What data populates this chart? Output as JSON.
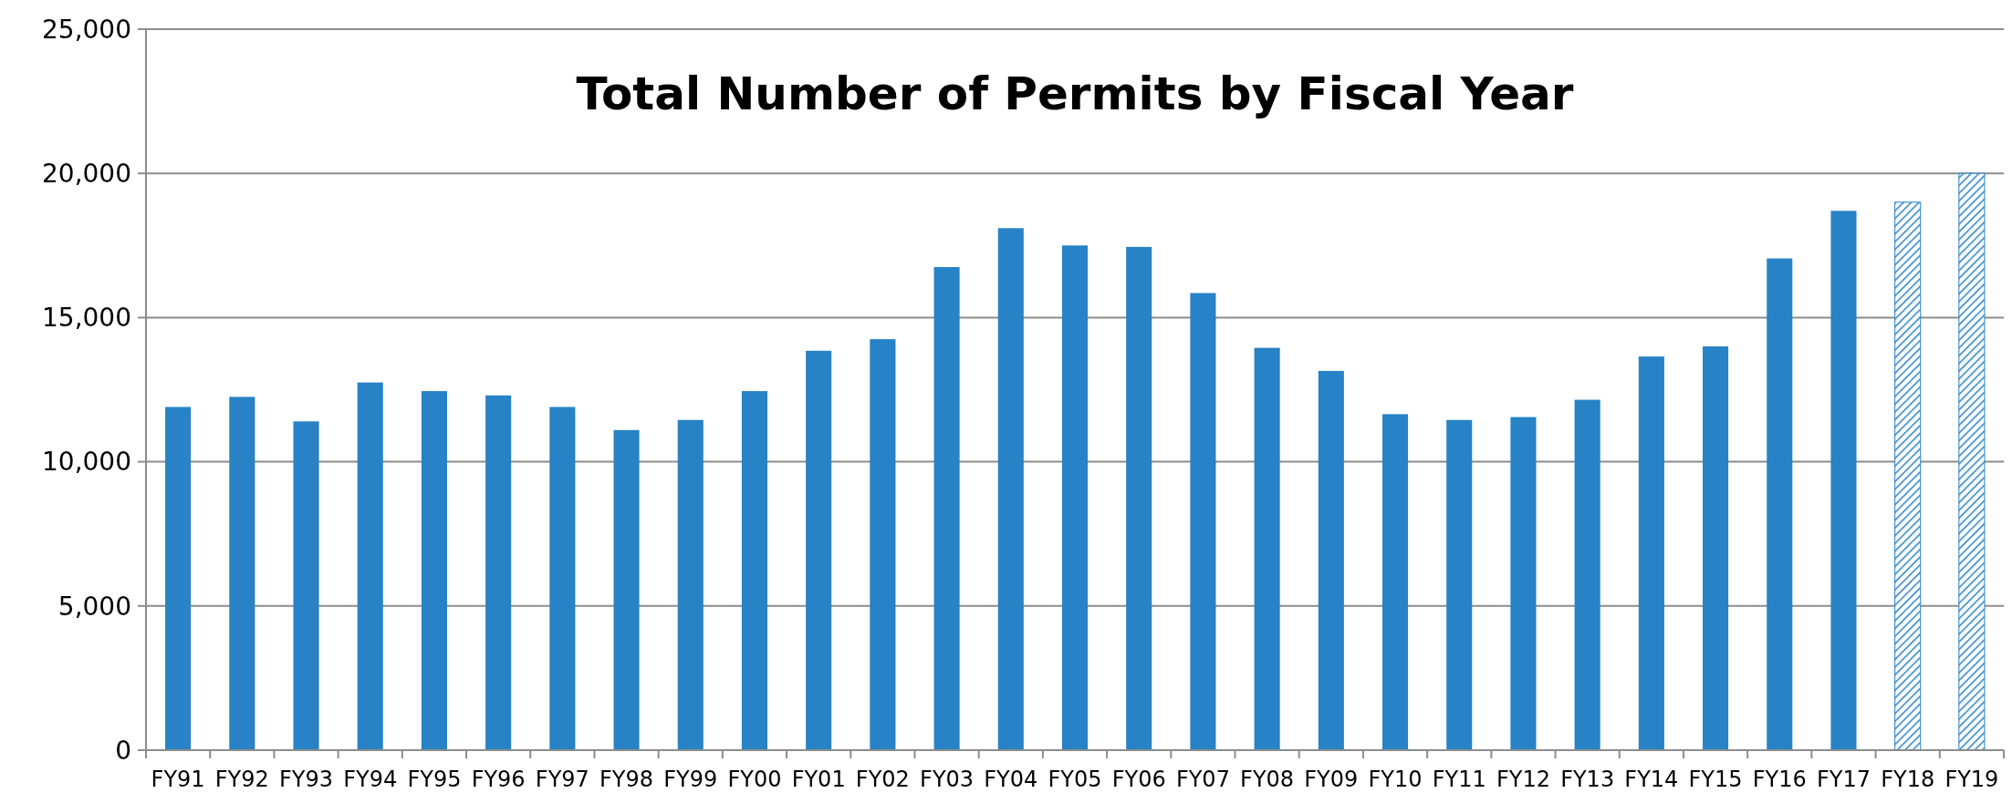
{
  "chart_data": {
    "type": "bar",
    "title": "Total Number of Permits by Fiscal Year",
    "categories": [
      "FY91",
      "FY92",
      "FY93",
      "FY94",
      "FY95",
      "FY96",
      "FY97",
      "FY98",
      "FY99",
      "FY00",
      "FY01",
      "FY02",
      "FY03",
      "FY04",
      "FY05",
      "FY06",
      "FY07",
      "FY08",
      "FY09",
      "FY10",
      "FY11",
      "FY12",
      "FY13",
      "FY14",
      "FY15",
      "FY16",
      "FY17",
      "FY18",
      "FY19"
    ],
    "series": [
      {
        "color": "#2782c6",
        "values": [
          11900,
          12250,
          11400,
          12750,
          12450,
          12300,
          11900,
          11100,
          11450,
          12450,
          13850,
          14250,
          16750,
          18100,
          17500,
          17450,
          15850,
          13950,
          13150,
          11650,
          11450,
          11550,
          12150,
          13650,
          14000,
          17050,
          18700,
          null,
          null
        ]
      },
      {
        "color": "#2782c6",
        "values": [
          null,
          null,
          null,
          null,
          null,
          null,
          null,
          null,
          null,
          null,
          null,
          null,
          null,
          null,
          null,
          null,
          null,
          null,
          null,
          null,
          null,
          null,
          null,
          null,
          null,
          null,
          null,
          19000,
          20000
        ]
      }
    ],
    "ylim": [
      0,
      25000
    ],
    "yticks": [
      {
        "value": 0,
        "label": "0"
      },
      {
        "value": 5000,
        "label": "5,000"
      },
      {
        "value": 10000,
        "label": "10,000"
      },
      {
        "value": 15000,
        "label": "15,000"
      },
      {
        "value": 20000,
        "label": "20,000"
      },
      {
        "value": 25000,
        "label": "25,000"
      }
    ],
    "grid": "y"
  }
}
